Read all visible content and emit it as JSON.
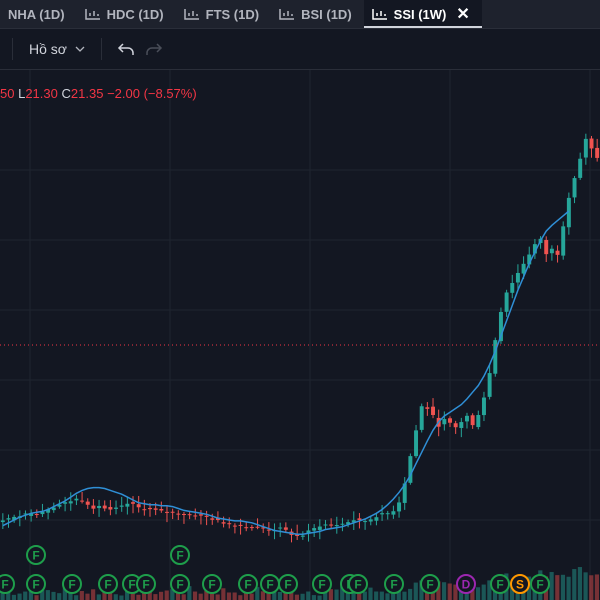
{
  "tabs": [
    {
      "label": "NHA (1D)",
      "active": false
    },
    {
      "label": "HDC (1D)",
      "active": false
    },
    {
      "label": "FTS (1D)",
      "active": false
    },
    {
      "label": "BSI (1D)",
      "active": false
    },
    {
      "label": "SSI (1W)",
      "active": true
    }
  ],
  "toolbar": {
    "profile_label": "Hồ sơ"
  },
  "legend": {
    "o_tail": "50",
    "low_label": "L",
    "low_value": "21.30",
    "close_label": "C",
    "close_value": "21.35",
    "change": "−2.00 (−8.57%)"
  },
  "colors": {
    "up": "#26a69a",
    "down": "#ef5350",
    "ma": "#2f8fd6",
    "price_line": "#f23645",
    "bg": "#131722",
    "grid": "#1f2430"
  },
  "chart_data": {
    "type": "candlestick",
    "title": "",
    "xlabel": "",
    "ylabel": "",
    "series": [
      {
        "values": [
          20,
          22,
          25,
          26,
          27,
          29,
          28,
          30,
          33,
          35,
          37,
          39,
          41,
          43,
          42,
          38,
          34,
          36,
          33,
          31,
          33,
          35,
          38,
          37,
          34,
          33,
          32,
          31,
          30,
          29,
          29,
          28,
          27,
          27,
          26,
          25,
          24,
          22,
          20,
          18,
          17,
          16,
          15,
          14,
          13,
          13,
          12,
          11,
          11,
          12,
          10,
          6,
          4,
          5,
          9,
          12,
          15,
          16,
          15,
          16,
          17,
          19,
          21,
          20,
          20,
          22,
          25,
          27,
          28,
          31,
          40,
          60,
          88,
          115,
          140,
          138,
          130,
          120,
          126,
          122,
          118,
          124,
          130,
          120,
          132,
          150,
          175,
          210,
          240,
          260,
          270,
          280,
          290,
          300,
          310,
          315,
          300,
          305,
          300,
          330,
          360,
          380,
          400,
          420,
          410,
          400
        ]
      },
      {
        "values": [
          15,
          18,
          21,
          24,
          26,
          28,
          29,
          30,
          32,
          35,
          38,
          41,
          45,
          49,
          52,
          54,
          55,
          55,
          54,
          52,
          50,
          48,
          45,
          42,
          39,
          38,
          37,
          37,
          36,
          36,
          35,
          33,
          31,
          30,
          29,
          28,
          27,
          25,
          23,
          22,
          21,
          20,
          20,
          19,
          18,
          16,
          14,
          12,
          10,
          9,
          8,
          7,
          6,
          6,
          7,
          8,
          9,
          11,
          12,
          13,
          14,
          16,
          18,
          20,
          22,
          25,
          28,
          32,
          37,
          43,
          50,
          58,
          68,
          80,
          92,
          104,
          115,
          124,
          130,
          134,
          138,
          142,
          148,
          155,
          162,
          172,
          184,
          198,
          214,
          230,
          246,
          262,
          276,
          290,
          302,
          314,
          324,
          330,
          335,
          340,
          345
        ]
      }
    ]
  },
  "events": [
    {
      "symbol": "F",
      "row": 1,
      "color": "#1e9e4b"
    },
    {
      "symbol": "F",
      "row": 1,
      "color": "#1e9e4b"
    },
    {
      "symbol": "F",
      "row": 2,
      "color": "#1e9e4b"
    },
    {
      "symbol": "F",
      "row": 2,
      "color": "#1e9e4b"
    },
    {
      "symbol": "F",
      "row": 2,
      "color": "#1e9e4b"
    },
    {
      "symbol": "F",
      "row": 2,
      "color": "#1e9e4b"
    },
    {
      "symbol": "F",
      "row": 2,
      "color": "#1e9e4b"
    },
    {
      "symbol": "F",
      "row": 2,
      "color": "#1e9e4b"
    },
    {
      "symbol": "F",
      "row": 2,
      "color": "#1e9e4b"
    },
    {
      "symbol": "F",
      "row": 2,
      "color": "#1e9e4b"
    },
    {
      "symbol": "F",
      "row": 2,
      "color": "#1e9e4b"
    },
    {
      "symbol": "F",
      "row": 2,
      "color": "#1e9e4b"
    },
    {
      "symbol": "F",
      "row": 2,
      "color": "#1e9e4b"
    },
    {
      "symbol": "F",
      "row": 2,
      "color": "#1e9e4b"
    },
    {
      "symbol": "F",
      "row": 2,
      "color": "#1e9e4b"
    },
    {
      "symbol": "F",
      "row": 2,
      "color": "#1e9e4b"
    },
    {
      "symbol": "F",
      "row": 2,
      "color": "#1e9e4b"
    },
    {
      "symbol": "F",
      "row": 2,
      "color": "#1e9e4b"
    },
    {
      "symbol": "D",
      "row": 2,
      "color": "#9c27b0"
    },
    {
      "symbol": "F",
      "row": 2,
      "color": "#1e9e4b"
    },
    {
      "symbol": "S",
      "row": 2,
      "color": "#ff9800"
    },
    {
      "symbol": "F",
      "row": 2,
      "color": "#1e9e4b"
    }
  ]
}
